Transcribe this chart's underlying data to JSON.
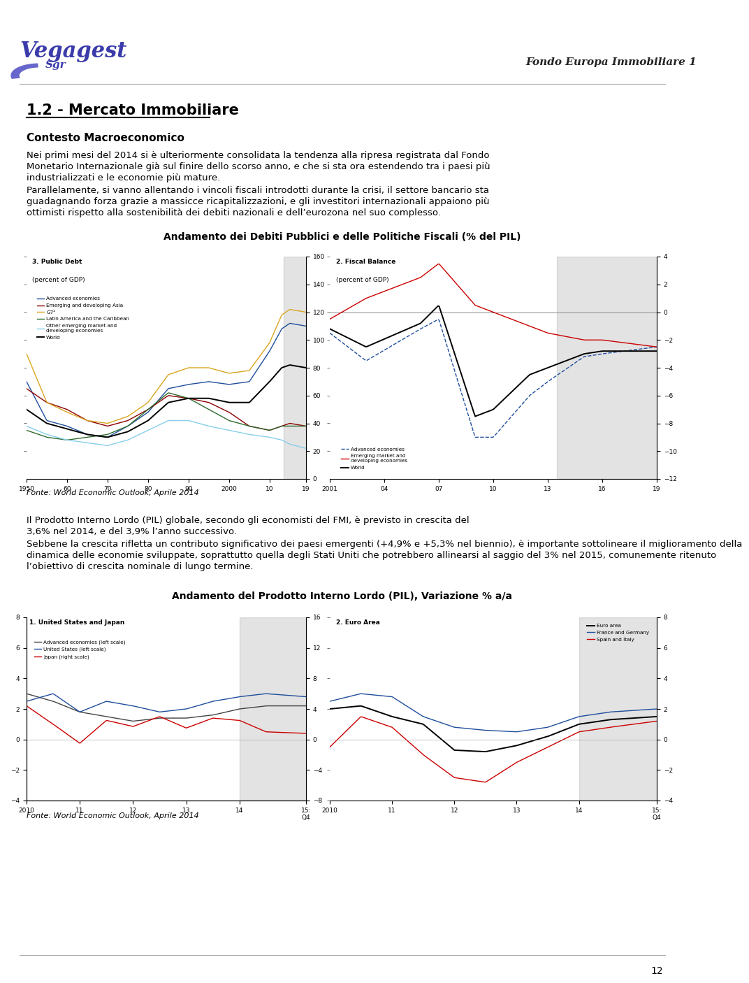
{
  "title_header": "Fondo Europa Immobiliare 1",
  "section_title": "1.2 - Mercato Immobiliare",
  "subsection_title": "Contesto Macroeconomico",
  "para1_lines": [
    "Nei primi mesi del 2014 si è ulteriormente consolidata la tendenza alla ripresa registrata dal Fondo",
    "Monetario Internazionale già sul finire dello scorso anno, e che si sta ora estendendo tra i paesi più",
    "industrializzati e le economie più mature."
  ],
  "para2_lines": [
    "Parallelamente, si vanno allentando i vincoli fiscali introdotti durante la crisi, il settore bancario sta",
    "guadagnando forza grazie a massicce ricapitalizzazioni, e gli investitori internazionali appaiono più",
    "ottimisti rispetto alla sostenibilità dei debiti nazionali e dell’eurozona nel suo complesso."
  ],
  "chart1_title": "Andamento dei Debiti Pubblici e delle Politiche Fiscali (% del PIL)",
  "chart1_fonte": "Fonte: World Economic Outlook, Aprile 2014",
  "para3_lines": [
    "Il Prodotto Interno Lordo (PIL) globale, secondo gli economisti del FMI, è previsto in crescita del",
    "3,6% nel 2014, e del 3,9% l’anno successivo."
  ],
  "para4_lines": [
    "Sebbene la crescita rifletta un contributo significativo dei paesi emergenti (+4,9% e +5,3% nel biennio), è importante sottolineare il miglioramento della",
    "dinamica delle economie sviluppate, soprattutto quella degli Stati Uniti che potrebbero allinearsi al saggio del 3% nel 2015, comunemente ritenuto",
    "l’obiettivo di crescita nominale di lungo termine."
  ],
  "chart2_title": "Andamento del Prodotto Interno Lordo (PIL), Variazione % a/a",
  "chart2_fonte": "Fonte: World Economic Outlook, Aprile 2014",
  "page_number": "12",
  "background_color": "#ffffff",
  "vegagest_color": "#3b3baa",
  "swoosh_color": "#6666cc"
}
